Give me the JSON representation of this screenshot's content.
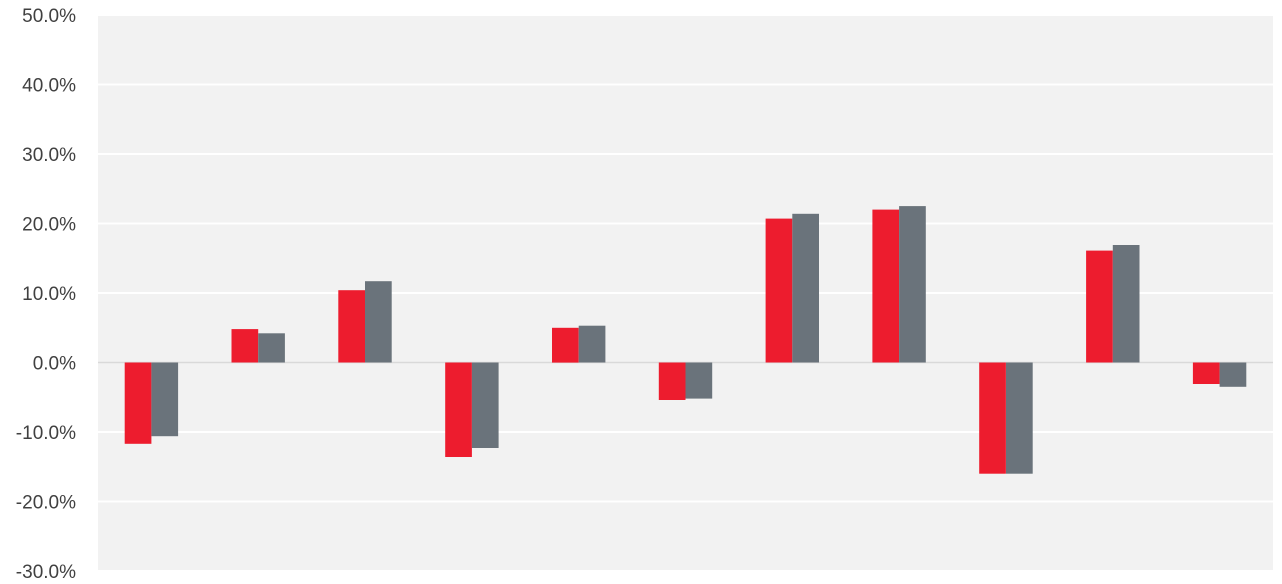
{
  "chart_data": {
    "type": "bar",
    "categories": [
      "",
      "",
      "",
      "",
      "",
      "",
      "",
      "",
      "",
      "",
      ""
    ],
    "series": [
      {
        "values": [
          -11.7,
          4.8,
          10.4,
          -13.6,
          5.0,
          -5.4,
          20.7,
          22.0,
          -16.0,
          16.1,
          -3.1
        ]
      },
      {
        "values": [
          -10.6,
          4.2,
          11.7,
          -12.3,
          5.3,
          -5.2,
          21.4,
          22.5,
          -16.0,
          16.9,
          -3.5
        ]
      }
    ],
    "colors": [
      "#ed1c2e",
      "#6a737b"
    ],
    "ylim": [
      -30,
      50
    ],
    "y_ticks": [
      50,
      40,
      30,
      20,
      10,
      0,
      -10,
      -20,
      -30
    ],
    "y_tick_labels": [
      "50.0%",
      "40.0%",
      "30.0%",
      "20.0%",
      "10.0%",
      "0.0%",
      "-10.0%",
      "-20.0%",
      "-30.0%"
    ],
    "grid": true,
    "plot_background": "#f2f2f2",
    "zero_line_color": "#d9d9d9",
    "title": "",
    "xlabel": "",
    "ylabel": ""
  }
}
